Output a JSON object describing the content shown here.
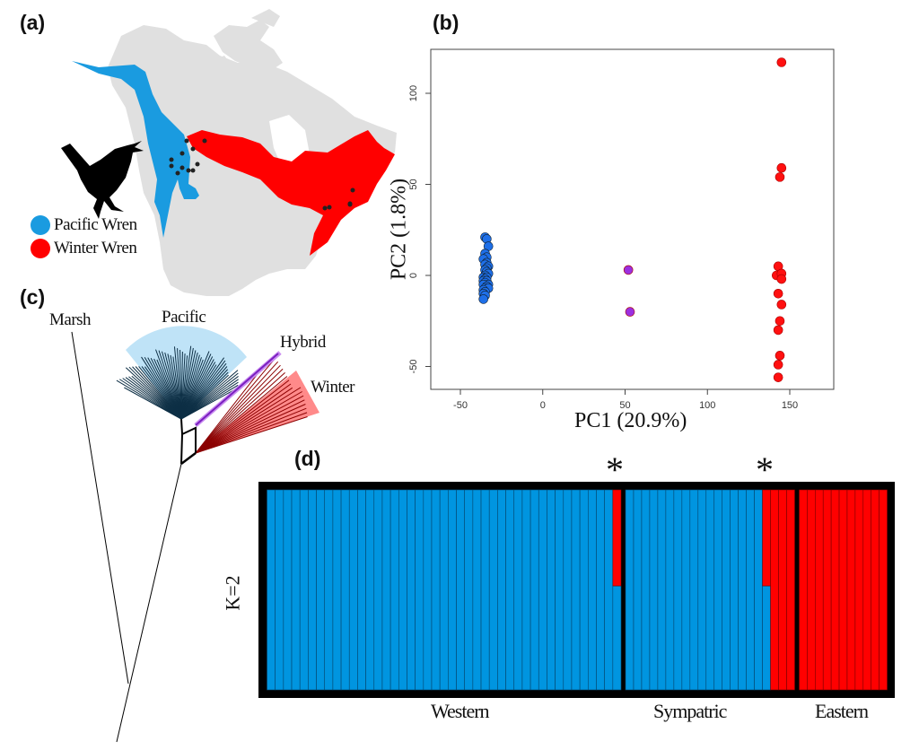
{
  "panels": {
    "a": "(a)",
    "b": "(b)",
    "c": "(c)",
    "d": "(d)"
  },
  "map": {
    "legend": [
      {
        "label": "Pacific Wren",
        "color": "#1a9be0"
      },
      {
        "label": "Winter Wren",
        "color": "#ff0000"
      }
    ],
    "land_color": "#e0e0e0"
  },
  "tree": {
    "labels": {
      "marsh": "Marsh",
      "pacific": "Pacific",
      "hybrid": "Hybrid",
      "winter": "Winter"
    },
    "colors": {
      "pacific": "#0d2f45",
      "pacific_bg": "#bfe3f7",
      "hybrid": "#9b30e0",
      "winter": "#8b0000",
      "winter_bg": "#ff8a8a"
    }
  },
  "chart_data": [
    {
      "type": "scatter",
      "panel": "b",
      "xlabel": "PC1 (20.9%)",
      "ylabel": "PC2 (1.8%)",
      "xlim": [
        -68,
        177
      ],
      "ylim": [
        -62,
        125
      ],
      "xticks": [
        -50,
        0,
        50,
        100,
        150
      ],
      "yticks": [
        -50,
        0,
        50,
        100
      ],
      "grid": false,
      "series": [
        {
          "name": "Pacific",
          "color": "#1e6fe8",
          "points": [
            [
              -35,
              21
            ],
            [
              -34,
              20
            ],
            [
              -33,
              16
            ],
            [
              -35,
              12
            ],
            [
              -34,
              10
            ],
            [
              -36,
              9
            ],
            [
              -34,
              7
            ],
            [
              -35,
              6
            ],
            [
              -33,
              5
            ],
            [
              -34,
              4
            ],
            [
              -35,
              3
            ],
            [
              -34,
              2
            ],
            [
              -33,
              1
            ],
            [
              -35,
              0
            ],
            [
              -36,
              -1
            ],
            [
              -34,
              -1
            ],
            [
              -35,
              -2
            ],
            [
              -36,
              -3
            ],
            [
              -34,
              -3
            ],
            [
              -35,
              -4
            ],
            [
              -33,
              -5
            ],
            [
              -36,
              -5
            ],
            [
              -34,
              -6
            ],
            [
              -35,
              -7
            ],
            [
              -33,
              -7
            ],
            [
              -36,
              -8
            ],
            [
              -35,
              -9
            ],
            [
              -36,
              -10
            ],
            [
              -35,
              -11
            ],
            [
              -36,
              -13
            ]
          ]
        },
        {
          "name": "Hybrid",
          "color": "#9b30e0",
          "points": [
            [
              52,
              3
            ],
            [
              53,
              -20
            ]
          ]
        },
        {
          "name": "Winter",
          "color": "#ff1010",
          "points": [
            [
              145,
              117
            ],
            [
              145,
              59
            ],
            [
              144,
              54
            ],
            [
              143,
              5
            ],
            [
              142,
              0
            ],
            [
              145,
              1
            ],
            [
              145,
              -2
            ],
            [
              143,
              -10
            ],
            [
              145,
              -16
            ],
            [
              144,
              -25
            ],
            [
              143,
              -30
            ],
            [
              144,
              -44
            ],
            [
              143,
              -49
            ],
            [
              143,
              -56
            ]
          ]
        }
      ]
    },
    {
      "type": "bar",
      "subtype": "stacked-admixture",
      "panel": "d",
      "ylabel": "K=2",
      "ylim": [
        0,
        1
      ],
      "colors": {
        "cluster1": "#0095e0",
        "cluster2": "#ff0000"
      },
      "groups": [
        {
          "name": "Western",
          "cluster2_fraction": [
            0,
            0,
            0,
            0,
            0,
            0,
            0,
            0,
            0,
            0,
            0,
            0,
            0,
            0,
            0,
            0,
            0,
            0,
            0,
            0,
            0,
            0,
            0,
            0,
            0,
            0,
            0,
            0,
            0,
            0,
            0,
            0,
            0,
            0,
            0,
            0,
            0,
            0,
            0,
            0,
            0,
            0,
            0.48
          ]
        },
        {
          "name": "Sympatric",
          "cluster2_fraction": [
            0,
            0,
            0,
            0,
            0,
            0,
            0,
            0,
            0,
            0,
            0,
            0,
            0,
            0,
            0,
            0,
            0,
            0.48,
            1,
            1,
            1
          ]
        },
        {
          "name": "Eastern",
          "cluster2_fraction": [
            1,
            1,
            1,
            1,
            1,
            1,
            1,
            1,
            1,
            1,
            1
          ]
        }
      ],
      "annotations": [
        {
          "text": "*",
          "group": "Western",
          "index": 42
        },
        {
          "text": "*",
          "group": "Sympatric",
          "index": 17
        }
      ]
    }
  ]
}
